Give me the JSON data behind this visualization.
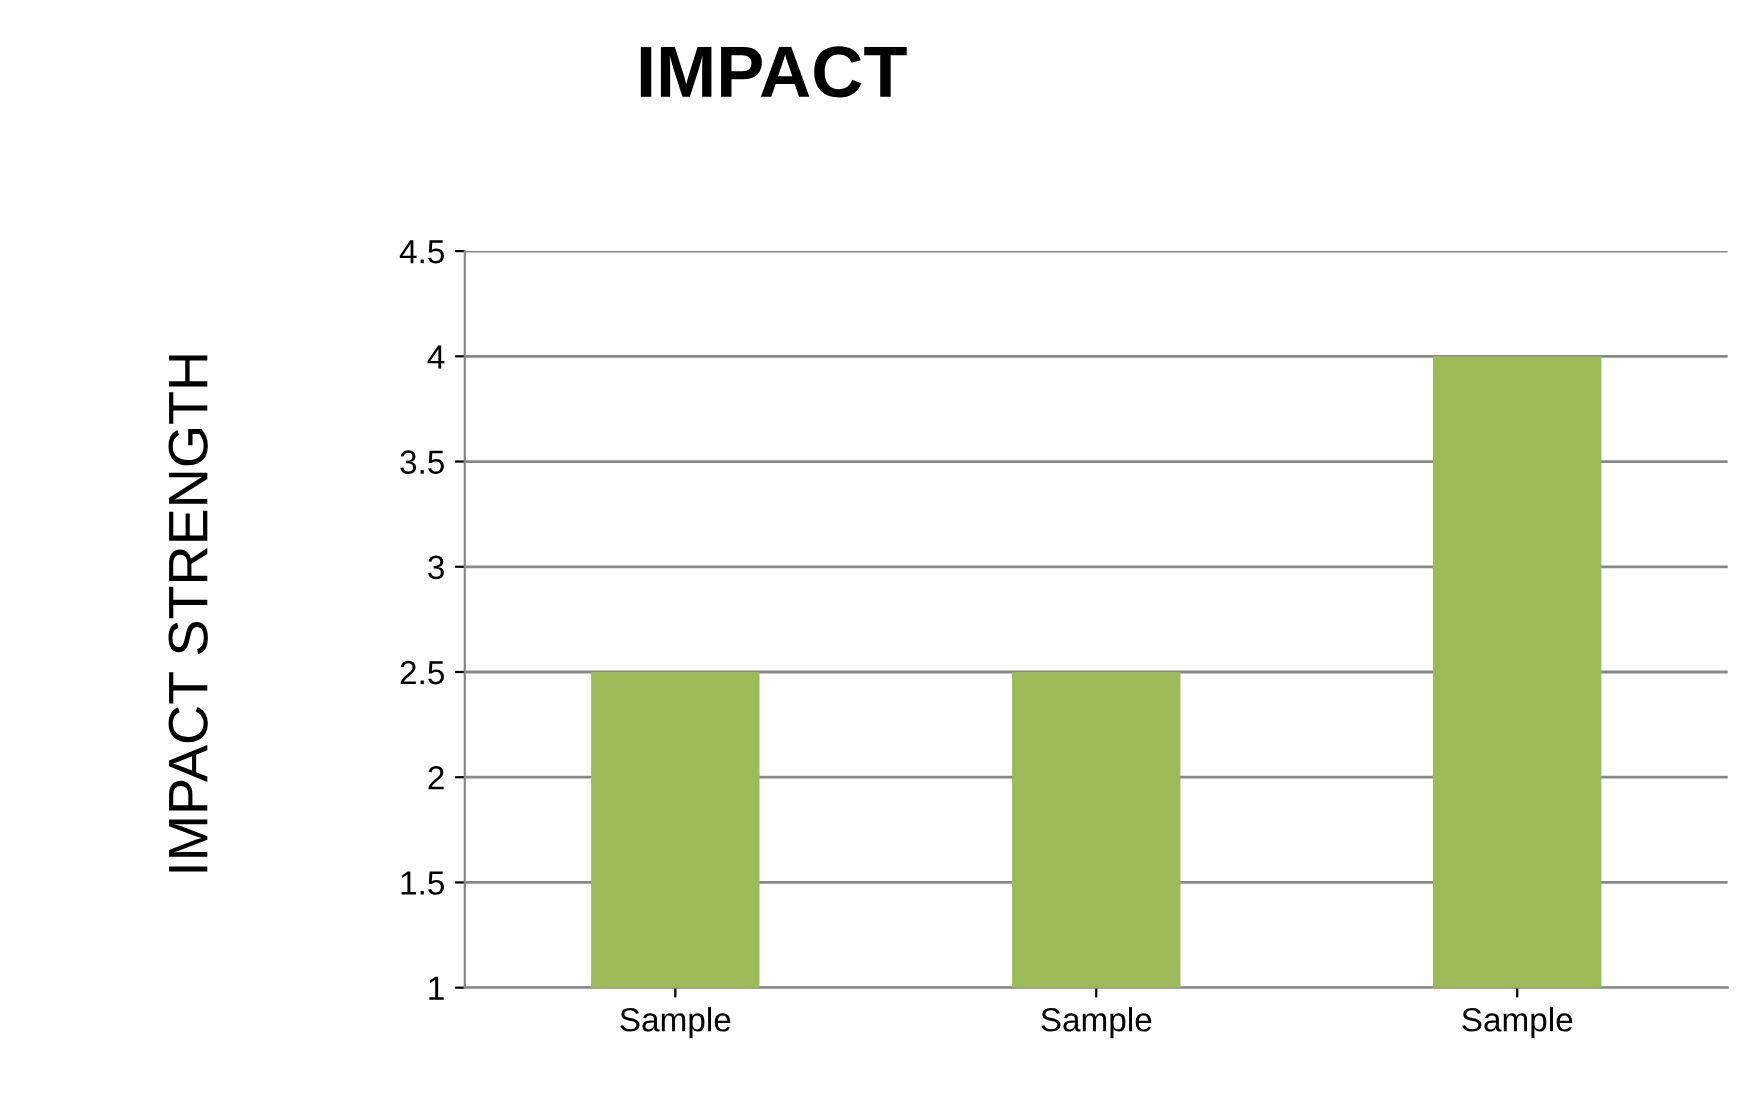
{
  "chart_data": {
    "type": "bar",
    "title": "IMPACT",
    "ylabel": "IMPACT STRENGTH",
    "categories": [
      "Sample",
      "Sample",
      "Sample"
    ],
    "values": [
      2.5,
      2.5,
      4
    ],
    "color": "#9bbb59",
    "ylim": [
      1,
      4.5
    ],
    "yticks": [
      1,
      1.5,
      2,
      2.5,
      3,
      3.5,
      4,
      4.5
    ],
    "grid": "y"
  }
}
